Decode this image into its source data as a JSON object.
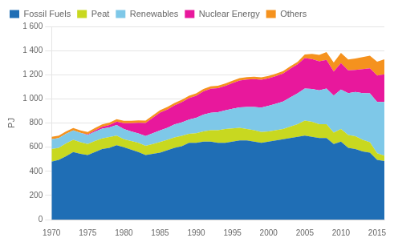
{
  "chart_data": {
    "type": "area",
    "stacked": true,
    "ylabel": "PJ",
    "x": [
      1970,
      1971,
      1972,
      1973,
      1974,
      1975,
      1976,
      1977,
      1978,
      1979,
      1980,
      1981,
      1982,
      1983,
      1984,
      1985,
      1986,
      1987,
      1988,
      1989,
      1990,
      1991,
      1992,
      1993,
      1994,
      1995,
      1996,
      1997,
      1998,
      1999,
      2000,
      2001,
      2002,
      2003,
      2004,
      2005,
      2006,
      2007,
      2008,
      2009,
      2010,
      2011,
      2012,
      2013,
      2014,
      2015,
      2016
    ],
    "series": [
      {
        "name": "Fossil Fuels",
        "color": "#1f6eb5",
        "values": [
          480,
          495,
          525,
          560,
          545,
          535,
          560,
          585,
          595,
          615,
          600,
          580,
          560,
          535,
          545,
          555,
          575,
          595,
          608,
          635,
          635,
          645,
          645,
          635,
          635,
          645,
          655,
          655,
          645,
          635,
          645,
          655,
          665,
          675,
          685,
          695,
          685,
          675,
          675,
          625,
          645,
          595,
          585,
          565,
          555,
          495,
          485
        ]
      },
      {
        "name": "Peat",
        "color": "#c8d820",
        "values": [
          105,
          100,
          105,
          100,
          95,
          90,
          90,
          88,
          88,
          80,
          65,
          70,
          75,
          75,
          80,
          88,
          85,
          85,
          85,
          75,
          80,
          85,
          95,
          105,
          115,
          110,
          105,
          95,
          95,
          90,
          85,
          85,
          85,
          95,
          105,
          125,
          125,
          115,
          115,
          95,
          105,
          105,
          105,
          95,
          85,
          55,
          45
        ]
      },
      {
        "name": "Renewables",
        "color": "#7ec8e8",
        "values": [
          80,
          80,
          80,
          78,
          78,
          75,
          78,
          80,
          80,
          88,
          85,
          80,
          78,
          82,
          90,
          95,
          100,
          108,
          112,
          118,
          128,
          140,
          145,
          150,
          155,
          163,
          170,
          182,
          192,
          202,
          212,
          220,
          228,
          242,
          255,
          265,
          272,
          280,
          295,
          308,
          328,
          348,
          368,
          388,
          405,
          425,
          445
        ]
      },
      {
        "name": "Nuclear Energy",
        "color": "#e8189c",
        "values": [
          0,
          0,
          0,
          0,
          0,
          5,
          10,
          15,
          20,
          28,
          48,
          68,
          88,
          108,
          128,
          148,
          152,
          158,
          168,
          178,
          182,
          192,
          198,
          198,
          202,
          212,
          222,
          228,
          232,
          232,
          228,
          228,
          232,
          238,
          242,
          252,
          248,
          242,
          238,
          198,
          218,
          188,
          182,
          198,
          208,
          218,
          228
        ]
      },
      {
        "name": "Others",
        "color": "#f5921e",
        "values": [
          20,
          20,
          20,
          20,
          20,
          20,
          20,
          20,
          20,
          20,
          20,
          20,
          20,
          20,
          20,
          20,
          20,
          20,
          20,
          20,
          20,
          20,
          20,
          20,
          20,
          20,
          20,
          20,
          20,
          20,
          20,
          20,
          20,
          20,
          20,
          30,
          42,
          52,
          65,
          75,
          85,
          90,
          95,
          100,
          105,
          115,
          125
        ]
      }
    ],
    "xlim": [
      1970,
      2016
    ],
    "xticks": [
      1970,
      1975,
      1980,
      1985,
      1990,
      1995,
      2000,
      2005,
      2010,
      2015
    ],
    "ylim": [
      0,
      1600
    ],
    "yticks": [
      0,
      200,
      400,
      600,
      800,
      {
        "value": 1000,
        "label": "1 000"
      },
      {
        "value": 1200,
        "label": "1 200"
      },
      {
        "value": 1400,
        "label": "1 400"
      },
      {
        "value": 1600,
        "label": "1 600"
      }
    ],
    "grid": true,
    "legend": "upper left"
  }
}
